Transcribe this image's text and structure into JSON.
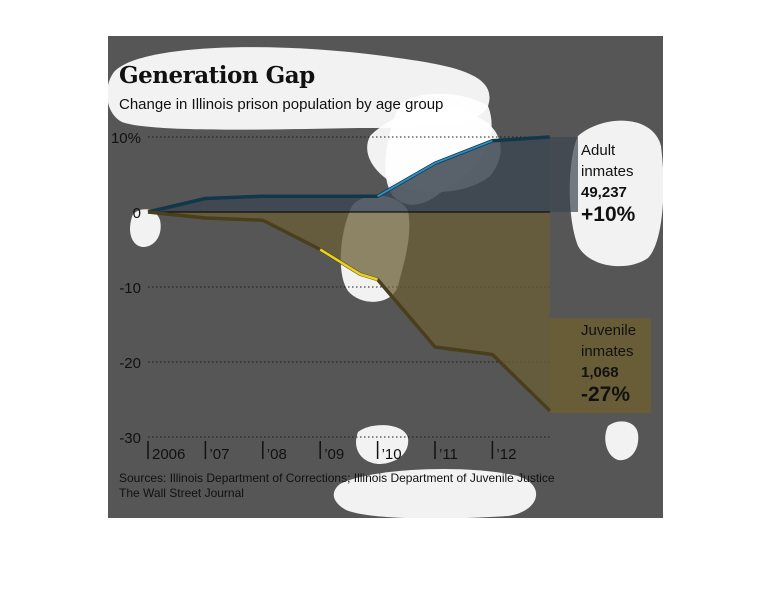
{
  "chart_data": {
    "type": "area",
    "title": "Generation Gap",
    "subtitle": "Change in Illinois prison population by age group",
    "x": [
      2006,
      2007,
      2008,
      2009,
      2010,
      2011,
      2012,
      2013
    ],
    "x_tick_labels": [
      "2006",
      "’07",
      "’08",
      "’09",
      "’10",
      "’11",
      "’12"
    ],
    "y_tick_labels": [
      "10%",
      "0",
      "-10",
      "-20",
      "-30"
    ],
    "y_ticks": [
      10,
      0,
      -10,
      -20,
      -30
    ],
    "ylim": [
      -30,
      10
    ],
    "grid": "dotted horizontal",
    "series": [
      {
        "x": [
          2006,
          2007,
          2008,
          2009,
          2010,
          2011,
          2012,
          2013
        ],
        "values": [
          0,
          1.8,
          2.1,
          2.1,
          2.1,
          6.5,
          9.5,
          10
        ],
        "color": "#12374a",
        "highlight_color": "#2a8fc0"
      },
      {
        "x": [
          2006,
          2007,
          2008,
          2009,
          2009.7,
          2010,
          2011,
          2012,
          2013
        ],
        "values": [
          0,
          -0.8,
          -1.1,
          -5,
          -8.3,
          -9,
          -18,
          -19,
          -26.5
        ],
        "color": "#4a3f1c",
        "highlight_color": "#e8d21a",
        "fill_color": "#6b5e35"
      }
    ],
    "annotations": [
      {
        "label_lines": [
          "Adult",
          "inmates"
        ],
        "count": "49,237",
        "change": "+10%"
      },
      {
        "label_lines": [
          "Juvenile",
          "inmates"
        ],
        "count": "1,068",
        "change": "-27%"
      }
    ],
    "source_lines": [
      "Sources: Illinois Department of Corrections; Illinois Department of Juvenile Justice",
      "The Wall Street Journal"
    ]
  }
}
